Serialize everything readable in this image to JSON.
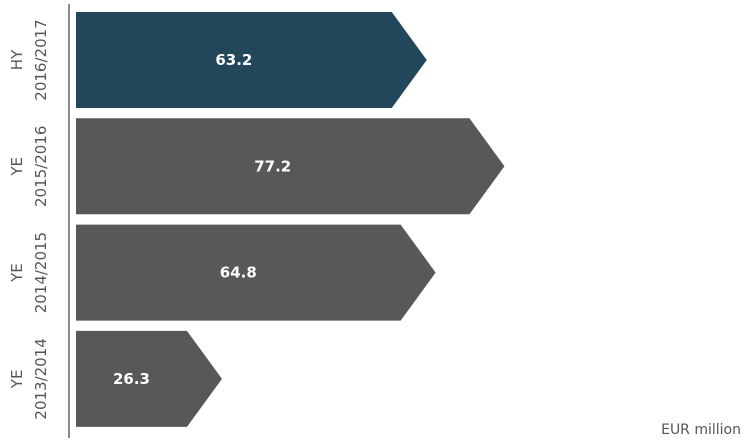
{
  "chart_data": {
    "type": "bar",
    "orientation": "horizontal",
    "shape": "arrow",
    "categories": [
      {
        "line1": "HY",
        "line2": "2016/2017"
      },
      {
        "line1": "YE",
        "line2": "2015/2016"
      },
      {
        "line1": "YE",
        "line2": "2014/2015"
      },
      {
        "line1": "YE",
        "line2": "2013/2014"
      }
    ],
    "values": [
      63.2,
      77.2,
      64.8,
      26.3
    ],
    "value_labels": [
      "63.2",
      "77.2",
      "64.8",
      "26.3"
    ],
    "highlight_index": 0,
    "unit_label": "EUR million",
    "title": "",
    "xlabel": "",
    "ylabel": "",
    "grid": false,
    "legend": "none"
  },
  "colors": {
    "highlight": "#22465A",
    "bar": "#58585A",
    "value_text": "#ffffff",
    "axis": "#8A8A8A",
    "category_text": "#555555"
  }
}
